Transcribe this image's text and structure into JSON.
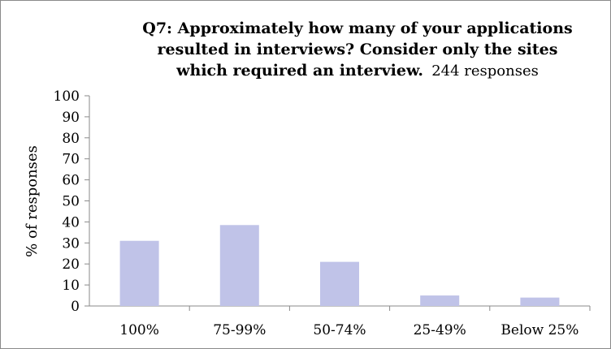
{
  "chart_data": {
    "type": "bar",
    "title_line1": "Q7: Approximately how many of your applications",
    "title_line2": "resulted in interviews? Consider only the sites",
    "title_line3": "which required an interview.",
    "subtitle": "244 responses",
    "xlabel": "",
    "ylabel": "% of responses",
    "ylim": [
      0,
      100
    ],
    "yticks": [
      0,
      10,
      20,
      30,
      40,
      50,
      60,
      70,
      80,
      90,
      100
    ],
    "categories": [
      "100%",
      "75-99%",
      "50-74%",
      "25-49%",
      "Below 25%"
    ],
    "values": [
      31,
      38.5,
      21,
      5,
      4
    ],
    "bar_color": "#c0c3e8",
    "grid": false,
    "legend": "none"
  }
}
